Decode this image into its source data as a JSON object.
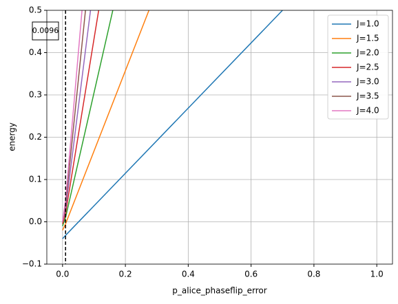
{
  "chart_data": {
    "type": "line",
    "xlabel": "p_alice_phaseflip_error",
    "ylabel": "energy",
    "xlim": [
      -0.05,
      1.05
    ],
    "ylim": [
      -0.1,
      0.5
    ],
    "xticks": [
      {
        "value": 0,
        "label": "0.0"
      },
      {
        "value": 0.2,
        "label": "0.2"
      },
      {
        "value": 0.4,
        "label": "0.4"
      },
      {
        "value": 0.6,
        "label": "0.6"
      },
      {
        "value": 0.8,
        "label": "0.8"
      },
      {
        "value": 1,
        "label": "1.0"
      }
    ],
    "yticks": [
      {
        "value": -0.1,
        "label": "−0.1"
      },
      {
        "value": 0,
        "label": "0.0"
      },
      {
        "value": 0.1,
        "label": "0.1"
      },
      {
        "value": 0.2,
        "label": "0.2"
      },
      {
        "value": 0.3,
        "label": "0.3"
      },
      {
        "value": 0.4,
        "label": "0.4"
      },
      {
        "value": 0.5,
        "label": "0.5"
      }
    ],
    "grid": true,
    "legend": "upper right",
    "vline": {
      "x": 0.0096,
      "label": "0.0096"
    },
    "series": [
      {
        "name": "J=1.0",
        "color": "#1f77b4",
        "x": [
          0,
          0.0096,
          0.7
        ],
        "values": [
          -0.04,
          -0.032,
          0.5
        ]
      },
      {
        "name": "J=1.5",
        "color": "#ff7f0e",
        "x": [
          0,
          0.0096,
          0.275
        ],
        "values": [
          -0.02,
          -0.005,
          0.5
        ]
      },
      {
        "name": "J=2.0",
        "color": "#2ca02c",
        "x": [
          0,
          0.0096,
          0.16
        ],
        "values": [
          -0.01,
          0.01,
          0.5
        ]
      },
      {
        "name": "J=2.5",
        "color": "#d62728",
        "x": [
          0,
          0.0096,
          0.115
        ],
        "values": [
          -0.005,
          0.02,
          0.5
        ]
      },
      {
        "name": "J=3.0",
        "color": "#9467bd",
        "x": [
          0,
          0.0096,
          0.089
        ],
        "values": [
          0,
          0.03,
          0.5
        ]
      },
      {
        "name": "J=3.5",
        "color": "#8c564b",
        "x": [
          0,
          0.0096,
          0.073
        ],
        "values": [
          0,
          0.04,
          0.5
        ]
      },
      {
        "name": "J=4.0",
        "color": "#e377c2",
        "x": [
          0,
          0.0096,
          0.062
        ],
        "values": [
          0,
          0.05,
          0.5
        ]
      }
    ]
  }
}
